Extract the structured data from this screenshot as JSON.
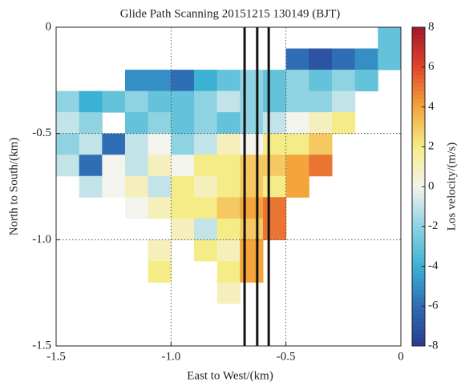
{
  "chart_data": {
    "type": "heatmap",
    "title": "Glide Path Scanning 20151215 130149 (BJT)",
    "x_label": "East to West/(km)",
    "y_label": "North to South/(km)",
    "colorbar_label": "Los velocity/(m/s)",
    "xlim": [
      -1.5,
      0
    ],
    "ylim": [
      -1.5,
      0
    ],
    "xticks": [
      -1.5,
      {
        "value": -1,
        "label": "-1.0"
      },
      -0.5,
      0
    ],
    "yticks": [
      -1.5,
      {
        "value": -1,
        "label": "-1.0"
      },
      -0.5,
      0
    ],
    "grid": true,
    "x": [
      -1.45,
      -1.35,
      -1.25,
      -1.15,
      -1.05,
      -0.95,
      -0.85,
      -0.75,
      -0.65,
      -0.55,
      -0.45,
      -0.35,
      -0.25,
      -0.15,
      -0.05
    ],
    "y": [
      -0.05,
      -0.15,
      -0.25,
      -0.35,
      -0.45,
      -0.55,
      -0.65,
      -0.75,
      -0.85,
      -0.95,
      -1.05,
      -1.15,
      -1.25
    ],
    "z": [
      [
        null,
        null,
        null,
        null,
        null,
        null,
        null,
        null,
        null,
        null,
        null,
        null,
        null,
        null,
        -3
      ],
      [
        null,
        null,
        null,
        null,
        null,
        null,
        null,
        null,
        null,
        null,
        -6,
        -7,
        -6,
        -5,
        -3
      ],
      [
        null,
        null,
        null,
        -5,
        -5,
        -6,
        -4,
        -3,
        -2,
        -3,
        -2,
        -3,
        -2,
        -3,
        null
      ],
      [
        -2,
        -4,
        -3,
        -2,
        -3,
        -3,
        -2,
        -1,
        -2,
        -3,
        -2,
        -2,
        -1,
        null,
        null
      ],
      [
        -1,
        -2,
        null,
        -3,
        -2,
        -3,
        -2,
        -3,
        -2,
        -1,
        0,
        1,
        2,
        null,
        null
      ],
      [
        -2,
        -1,
        -6,
        -1,
        0,
        -2,
        -1,
        1,
        0,
        2,
        2,
        3,
        null,
        null,
        null
      ],
      [
        -1,
        -6,
        0,
        -1,
        1,
        0,
        2,
        2,
        3,
        3,
        4,
        5,
        null,
        null,
        null
      ],
      [
        null,
        -1,
        0,
        1,
        -1,
        2,
        1,
        2,
        3,
        2,
        4,
        null,
        null,
        null,
        null
      ],
      [
        null,
        null,
        null,
        0,
        1,
        2,
        2,
        3,
        4,
        5,
        null,
        null,
        null,
        null,
        null
      ],
      [
        null,
        null,
        null,
        null,
        null,
        1,
        -1,
        2,
        3,
        5,
        null,
        null,
        null,
        null,
        null
      ],
      [
        null,
        null,
        null,
        null,
        1,
        null,
        2,
        1,
        4,
        null,
        null,
        null,
        null,
        null,
        null
      ],
      [
        null,
        null,
        null,
        null,
        2,
        null,
        null,
        2,
        4,
        null,
        null,
        null,
        null,
        null,
        null
      ],
      [
        null,
        null,
        null,
        null,
        null,
        null,
        null,
        1,
        null,
        null,
        null,
        null,
        null,
        null,
        null
      ]
    ],
    "cell_size": 0.1,
    "zlim": [
      -8,
      8
    ],
    "colormap": [
      "#2a3a8f",
      "#2f6db5",
      "#3bb1d3",
      "#8fd3e2",
      "#f4f4ee",
      "#f5ec88",
      "#f4a43a",
      "#e0452a",
      "#a3172b"
    ],
    "colorbar_ticks": [
      8,
      6,
      4,
      2,
      0,
      -2,
      -4,
      -6,
      -8
    ],
    "vlines": [
      -0.68,
      -0.625,
      -0.575
    ],
    "vline_color": "#111111"
  }
}
